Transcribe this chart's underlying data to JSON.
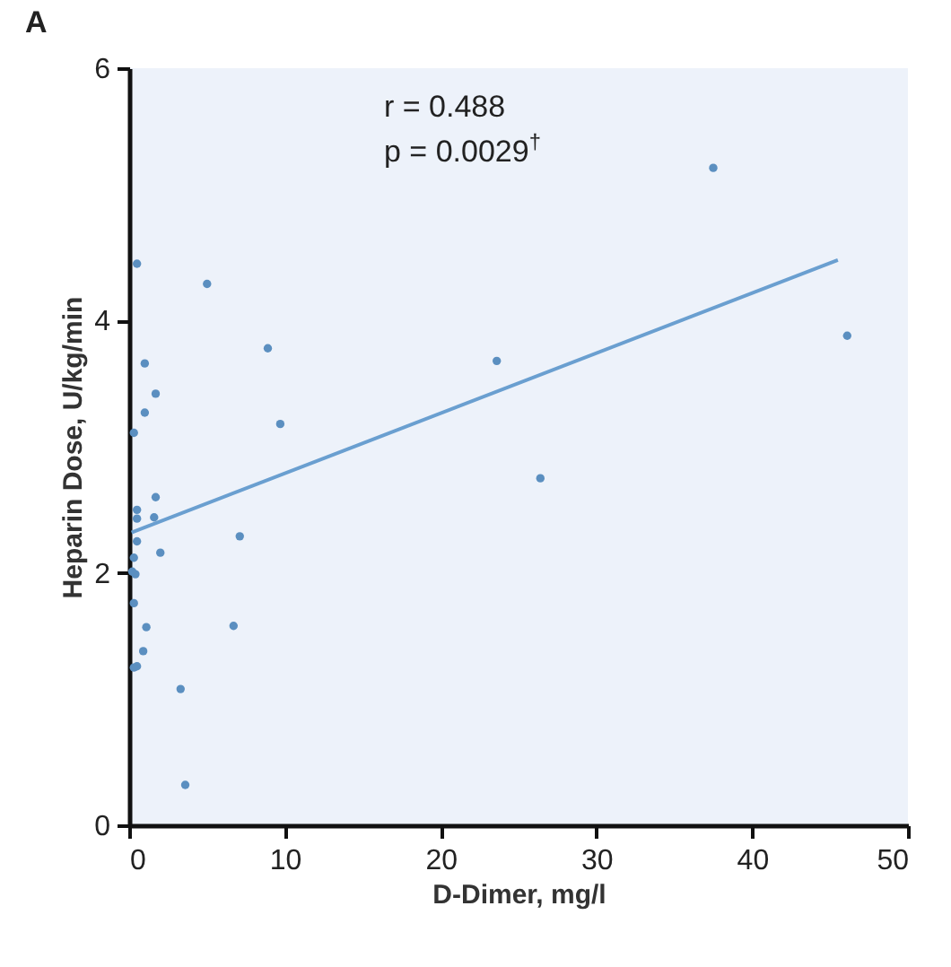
{
  "chart_data": {
    "type": "scatter",
    "title": "A",
    "xlabel": "D-Dimer, mg/l",
    "ylabel": "Heparin Dose, U/kg/min",
    "xlim": [
      0,
      50
    ],
    "xticks": [
      0,
      10,
      20,
      30,
      40,
      50
    ],
    "ylim": [
      0,
      6
    ],
    "yticks": [
      0,
      2,
      4,
      6
    ],
    "grid": false,
    "annotations": [
      "r = 0.488",
      "p = 0.0029$^{†}$"
    ],
    "series": [
      {
        "marker": "circle",
        "color": "#5b8fc0",
        "x": [
          0.5,
          5.0,
          8.9,
          1.0,
          1.7,
          1.0,
          9.7,
          0.3,
          0.5,
          1.7,
          0.5,
          1.6,
          0.5,
          7.1,
          2.0,
          0.3,
          0.2,
          0.4,
          0.3,
          1.1,
          6.7,
          0.9,
          0.5,
          0.3,
          3.3,
          3.6,
          37.5,
          23.6,
          26.4,
          46.1
        ],
        "values": [
          4.45,
          4.29,
          3.78,
          3.66,
          3.42,
          3.27,
          3.18,
          3.11,
          2.5,
          2.6,
          2.43,
          2.44,
          2.25,
          2.29,
          2.16,
          2.12,
          2.01,
          1.99,
          1.76,
          1.57,
          1.58,
          1.38,
          1.26,
          1.25,
          1.08,
          0.32,
          5.21,
          3.68,
          2.75,
          3.88
        ]
      },
      {
        "type": "line",
        "color": "#6a9fd0",
        "x": [
          0.15,
          45.5
        ],
        "values": [
          2.32,
          4.48
        ]
      }
    ]
  }
}
